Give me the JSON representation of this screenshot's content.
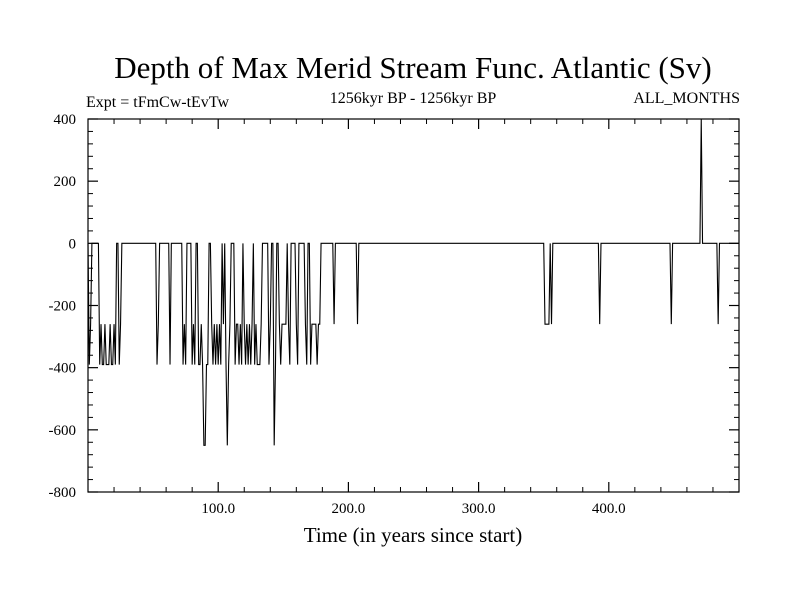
{
  "chart_data": {
    "type": "line",
    "title": "Depth of Max Merid Stream Func. Atlantic (Sv)",
    "subtitle_left": "Expt = tFmCw-tEvTw",
    "subtitle_center": "1256kyr BP - 1256kyr BP",
    "subtitle_right": "ALL_MONTHS",
    "xlabel": "Time (in years since start)",
    "ylabel": "",
    "xlim": [
      0,
      500
    ],
    "ylim": [
      -800,
      400
    ],
    "x_ticks": [
      100,
      200,
      300,
      400
    ],
    "x_tick_labels": [
      "100.0",
      "200.0",
      "300.0",
      "400.0"
    ],
    "y_ticks": [
      -800,
      -600,
      -400,
      -200,
      0,
      200,
      400
    ],
    "y_tick_labels": [
      "-800",
      "-600",
      "-400",
      "-200",
      "0",
      "200",
      "400"
    ],
    "grid": false,
    "series": [
      {
        "color": "#000000",
        "spikes": [
          [
            1,
            -390
          ],
          [
            2,
            -260
          ],
          [
            9,
            -390
          ],
          [
            10,
            -260
          ],
          [
            11,
            -390
          ],
          [
            12,
            -390
          ],
          [
            13,
            -260
          ],
          [
            14,
            -390
          ],
          [
            15,
            -390
          ],
          [
            16,
            -390
          ],
          [
            17,
            -260
          ],
          [
            18,
            -390
          ],
          [
            19,
            -390
          ],
          [
            20,
            -260
          ],
          [
            21,
            -390
          ],
          [
            24,
            -390
          ],
          [
            25,
            -260
          ],
          [
            53,
            -390
          ],
          [
            54,
            -260
          ],
          [
            63,
            -390
          ],
          [
            73,
            -390
          ],
          [
            74,
            -260
          ],
          [
            75,
            -390
          ],
          [
            80,
            -390
          ],
          [
            81,
            -260
          ],
          [
            82,
            -390
          ],
          [
            85,
            -390
          ],
          [
            86,
            -390
          ],
          [
            87,
            -260
          ],
          [
            88,
            -390
          ],
          [
            89,
            -650
          ],
          [
            90,
            -650
          ],
          [
            91,
            -390
          ],
          [
            92,
            -390
          ],
          [
            95,
            -260
          ],
          [
            96,
            -390
          ],
          [
            97,
            -260
          ],
          [
            98,
            -390
          ],
          [
            99,
            -260
          ],
          [
            100,
            -390
          ],
          [
            101,
            -260
          ],
          [
            102,
            -390
          ],
          [
            104,
            -260
          ],
          [
            106,
            -390
          ],
          [
            107,
            -650
          ],
          [
            108,
            -390
          ],
          [
            109,
            -260
          ],
          [
            113,
            -390
          ],
          [
            114,
            -260
          ],
          [
            115,
            -260
          ],
          [
            116,
            -390
          ],
          [
            117,
            -260
          ],
          [
            118,
            -390
          ],
          [
            120,
            -260
          ],
          [
            121,
            -390
          ],
          [
            122,
            -260
          ],
          [
            123,
            -390
          ],
          [
            124,
            -260
          ],
          [
            125,
            -390
          ],
          [
            126,
            -260
          ],
          [
            128,
            -390
          ],
          [
            129,
            -260
          ],
          [
            130,
            -390
          ],
          [
            131,
            -390
          ],
          [
            132,
            -390
          ],
          [
            133,
            -260
          ],
          [
            139,
            -390
          ],
          [
            140,
            -260
          ],
          [
            143,
            -650
          ],
          [
            144,
            -390
          ],
          [
            147,
            -260
          ],
          [
            148,
            -390
          ],
          [
            149,
            -260
          ],
          [
            150,
            -260
          ],
          [
            151,
            -260
          ],
          [
            152,
            -260
          ],
          [
            154,
            -260
          ],
          [
            155,
            -390
          ],
          [
            160,
            -260
          ],
          [
            161,
            -390
          ],
          [
            167,
            -260
          ],
          [
            168,
            -390
          ],
          [
            171,
            -390
          ],
          [
            172,
            -260
          ],
          [
            173,
            -260
          ],
          [
            174,
            -260
          ],
          [
            175,
            -260
          ],
          [
            176,
            -390
          ],
          [
            177,
            -260
          ],
          [
            178,
            -260
          ],
          [
            189,
            -260
          ],
          [
            207,
            -260
          ],
          [
            351,
            -260
          ],
          [
            352,
            -260
          ],
          [
            353,
            -260
          ],
          [
            354,
            -260
          ],
          [
            356,
            -260
          ],
          [
            393,
            -260
          ],
          [
            448,
            -260
          ],
          [
            471,
            400
          ],
          [
            484,
            -260
          ]
        ]
      }
    ]
  }
}
